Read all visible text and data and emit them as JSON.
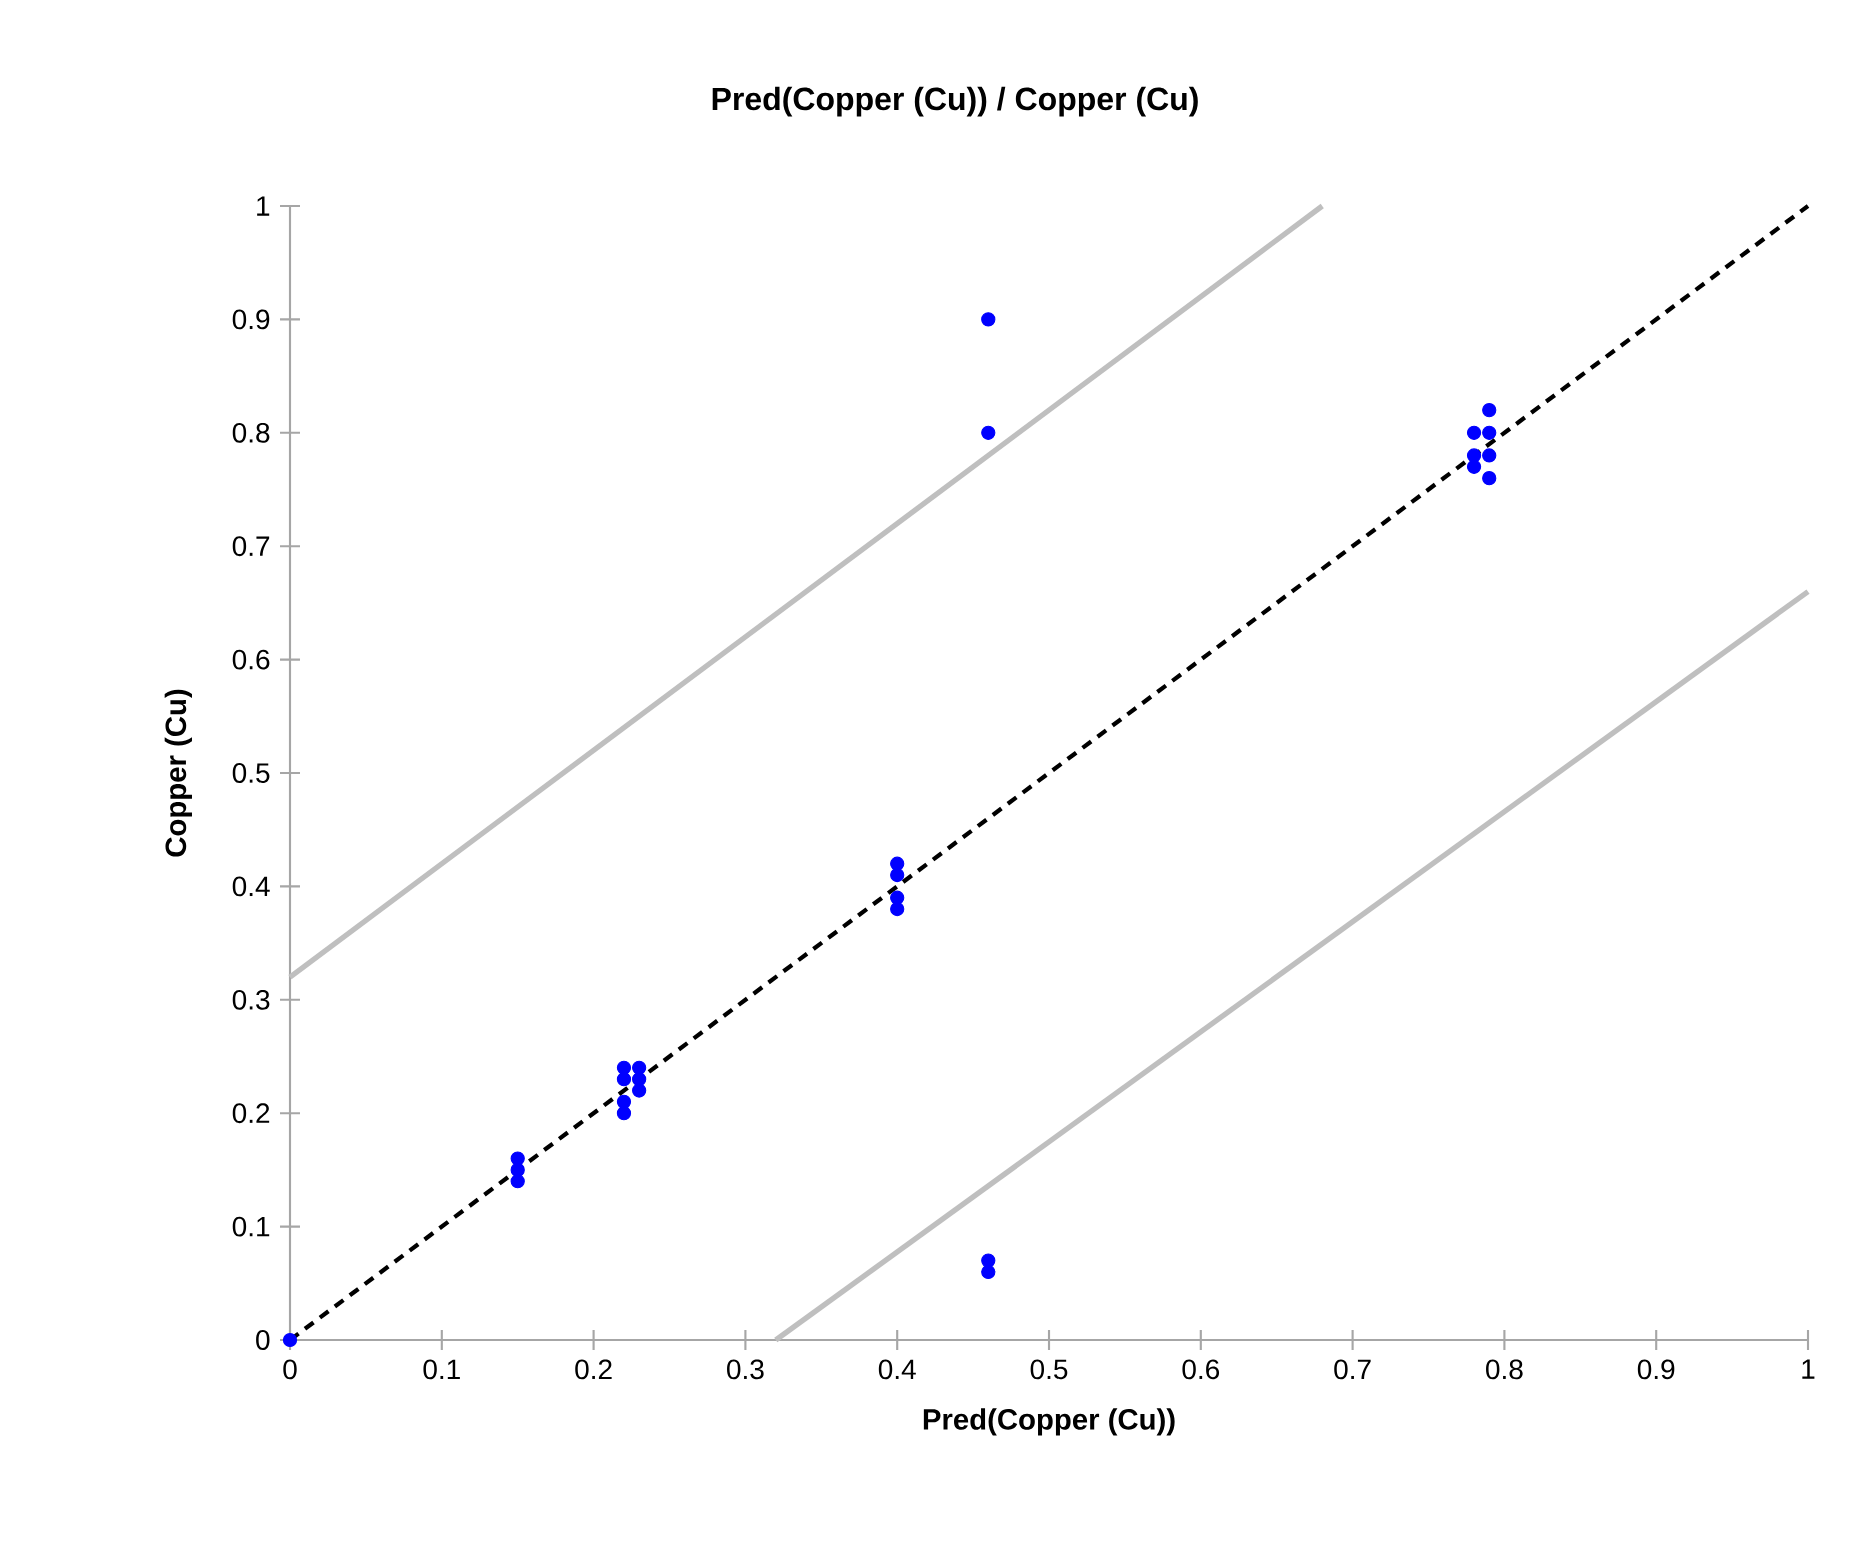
{
  "chart_data": {
    "type": "scatter",
    "title": "Pred(Copper (Cu)) / Copper (Cu)",
    "xlabel": "Pred(Copper (Cu))",
    "ylabel": "Copper (Cu)",
    "xlim": [
      0,
      1
    ],
    "ylim": [
      0,
      1
    ],
    "xticks": [
      0,
      0.1,
      0.2,
      0.3,
      0.4,
      0.5,
      0.6,
      0.7,
      0.8,
      0.9,
      1
    ],
    "yticks": [
      0,
      0.1,
      0.2,
      0.3,
      0.4,
      0.5,
      0.6,
      0.7,
      0.8,
      0.9,
      1
    ],
    "grid": false,
    "series": [
      {
        "type": "line",
        "marker": "none",
        "color": "#bfbfbf",
        "line_style": "solid",
        "x": [
          0,
          0.68
        ],
        "values": [
          0.32,
          1
        ]
      },
      {
        "type": "line",
        "marker": "none",
        "color": "#bfbfbf",
        "line_style": "solid",
        "x": [
          0.32,
          1
        ],
        "values": [
          0,
          0.66
        ]
      },
      {
        "type": "line",
        "marker": "none",
        "color": "#000000",
        "line_style": "dashed",
        "x": [
          0,
          1
        ],
        "values": [
          0,
          1
        ]
      },
      {
        "marker": "circle",
        "color": "#0000ff",
        "x": [
          0,
          0.15,
          0.15,
          0.15,
          0.22,
          0.22,
          0.22,
          0.22,
          0.23,
          0.23,
          0.23,
          0.4,
          0.4,
          0.4,
          0.4,
          0.46,
          0.46,
          0.46,
          0.46,
          0.78,
          0.78,
          0.78,
          0.79,
          0.79,
          0.79,
          0.79
        ],
        "values": [
          0,
          0.16,
          0.15,
          0.14,
          0.24,
          0.23,
          0.21,
          0.2,
          0.24,
          0.23,
          0.22,
          0.42,
          0.41,
          0.39,
          0.38,
          0.9,
          0.8,
          0.07,
          0.06,
          0.8,
          0.78,
          0.77,
          0.82,
          0.8,
          0.78,
          0.76
        ]
      }
    ]
  }
}
